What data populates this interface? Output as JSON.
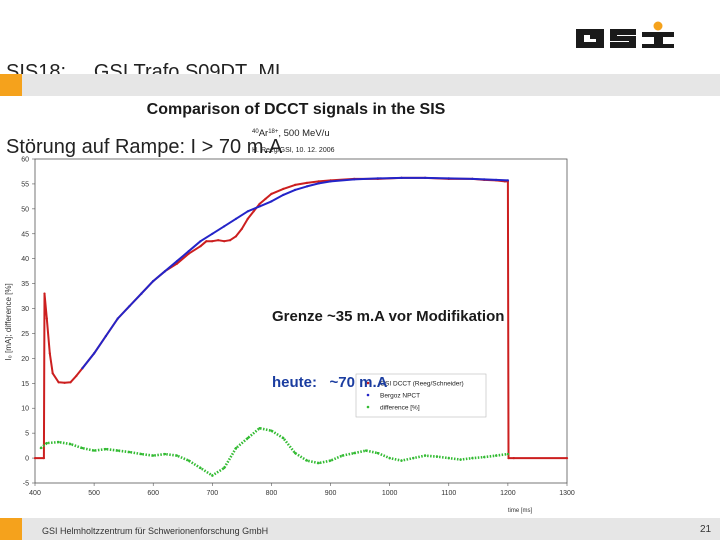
{
  "slide": {
    "title_line1": "SIS18:     GSI Trafo S09DT_ML",
    "title_line2": "Störung auf Rampe: I > 70 m.A",
    "footer": "GSI Helmholtzzentrum für Schwerionenforschung GmbH",
    "page_number": "21",
    "accent_color": "#f5a21c"
  },
  "annotation": {
    "line1": "Grenze ~35 m.A vor Modifikation",
    "line2": "heute:   ~70 m.A"
  },
  "chart_data": {
    "type": "line",
    "title": "Comparison of DCCT signals in the SIS",
    "subtitle_prefix": "40Ar18+, 500 MeV/u",
    "subtitle_mass": "40",
    "subtitle_ion": "Ar",
    "subtitle_charge": "18+",
    "subtitle_rest": ", 500 MeV/u",
    "credit": "H. Reeg/GSI, 10. 12. 2006",
    "xlabel": "time [ms]",
    "ylabel": "I₀ [mA]; difference [%]",
    "xlim": [
      400,
      1300
    ],
    "ylim": [
      -5,
      60
    ],
    "xticks": [
      "400",
      "500",
      "600",
      "700",
      "800",
      "900",
      "1000",
      "1100",
      "1200",
      "1300"
    ],
    "yticks": [
      "-5",
      "0",
      "5",
      "10",
      "15",
      "20",
      "25",
      "30",
      "35",
      "40",
      "45",
      "50",
      "55",
      "60"
    ],
    "legend": [
      "GSI DCCT (Reeg/Schneider)",
      "Bergoz NPCT",
      "difference [%]"
    ],
    "series": [
      {
        "name": "GSI DCCT (Reeg/Schneider)",
        "color": "#cc1f1f",
        "x": [
          400,
          415,
          416,
          420,
          425,
          430,
          440,
          450,
          460,
          470,
          480,
          500,
          520,
          540,
          560,
          580,
          600,
          620,
          640,
          660,
          680,
          690,
          700,
          710,
          720,
          730,
          740,
          750,
          760,
          770,
          780,
          790,
          800,
          820,
          840,
          860,
          880,
          900,
          940,
          980,
          1020,
          1060,
          1100,
          1140,
          1160,
          1180,
          1195,
          1200,
          1201,
          1210,
          1300
        ],
        "y": [
          0,
          0,
          33,
          28,
          21,
          17,
          15.2,
          15.1,
          15.2,
          16.5,
          18,
          21,
          24.5,
          28,
          30.5,
          33,
          35.5,
          37.5,
          39,
          41,
          42.5,
          43.5,
          43.5,
          43.7,
          43.5,
          43.7,
          44.5,
          46,
          48,
          49.5,
          51,
          52,
          53,
          54,
          54.8,
          55.2,
          55.5,
          55.7,
          56,
          56,
          56.2,
          56.2,
          56,
          56,
          55.8,
          55.7,
          55.5,
          55.5,
          0,
          0,
          0
        ]
      },
      {
        "name": "Bergoz NPCT",
        "color": "#2424c8",
        "x": [
          480,
          500,
          520,
          540,
          560,
          580,
          600,
          620,
          640,
          660,
          680,
          700,
          720,
          740,
          760,
          780,
          800,
          820,
          840,
          860,
          880,
          900,
          940,
          980,
          1020,
          1060,
          1100,
          1140,
          1160,
          1180,
          1200
        ],
        "y": [
          18,
          21,
          24.5,
          28,
          30.5,
          33,
          35.5,
          37.5,
          39.5,
          41.5,
          43.5,
          45,
          46.5,
          48,
          49.5,
          50.5,
          51.5,
          52.8,
          53.8,
          54.5,
          55.1,
          55.5,
          55.9,
          56.1,
          56.2,
          56.2,
          56.1,
          56,
          55.9,
          55.8,
          55.7
        ]
      },
      {
        "name": "difference [%]",
        "color": "#33bb33",
        "x": [
          410,
          420,
          440,
          460,
          480,
          500,
          520,
          540,
          560,
          580,
          600,
          620,
          640,
          660,
          680,
          700,
          720,
          740,
          760,
          780,
          800,
          820,
          840,
          860,
          880,
          900,
          920,
          940,
          960,
          980,
          1000,
          1020,
          1040,
          1060,
          1080,
          1100,
          1120,
          1140,
          1160,
          1180,
          1200
        ],
        "y": [
          2,
          3,
          3.2,
          2.8,
          2,
          1.5,
          1.8,
          1.5,
          1.2,
          0.8,
          0.5,
          0.8,
          0.5,
          -0.5,
          -2,
          -3.5,
          -2,
          2,
          4,
          6,
          5.5,
          4,
          1,
          -0.5,
          -1,
          -0.5,
          0.5,
          1,
          1.5,
          1,
          0,
          -0.5,
          0,
          0.5,
          0.3,
          0,
          -0.3,
          0,
          0.2,
          0.5,
          0.8
        ]
      }
    ]
  }
}
